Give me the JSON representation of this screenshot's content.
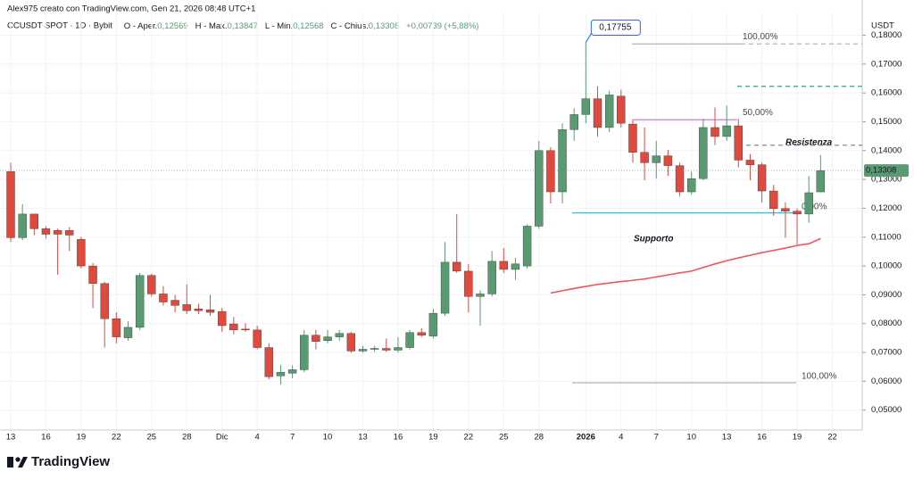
{
  "header": {
    "author_line": "Alex975 creato con TradingView.com, Gen 21, 2026 08:48 UTC+1",
    "symbol": "CCUSDT SPOT · 1D · Bybit",
    "items": [
      {
        "key": "O - Aper.",
        "value": "0,12569"
      },
      {
        "key": "H - Max.",
        "value": "0,13847"
      },
      {
        "key": "L - Min.",
        "value": "0,12568"
      },
      {
        "key": "C - Chius.",
        "value": "0,13308"
      }
    ],
    "change": "+0,00739 (+5,88%)"
  },
  "logo": "TradingView",
  "chart_data": {
    "type": "candlestick",
    "currency": "USDT",
    "up_color": "#5a9a72",
    "down_color": "#e0493e",
    "categories": [
      "13",
      null,
      null,
      "16",
      null,
      null,
      "19",
      null,
      null,
      "22",
      null,
      null,
      "25",
      null,
      null,
      "28",
      null,
      null,
      "Dic",
      null,
      null,
      "4",
      null,
      null,
      "7",
      null,
      null,
      "10",
      null,
      null,
      "13",
      null,
      null,
      "16",
      null,
      null,
      "19",
      null,
      null,
      "22",
      null,
      null,
      "25",
      null,
      null,
      "28",
      null,
      null,
      null,
      "2026",
      null,
      null,
      "4",
      null,
      null,
      "7",
      null,
      null,
      "10",
      null,
      null,
      "13",
      null,
      null,
      "16",
      null,
      null,
      "19",
      null,
      null,
      "22"
    ],
    "open": [
      0.1327,
      0.1098,
      0.118,
      0.1129,
      0.1123,
      0.1123,
      0.1092,
      0.1,
      0.0939,
      0.0817,
      0.0751,
      0.0787,
      0.0967,
      0.0903,
      0.0881,
      0.0866,
      0.0851,
      0.0848,
      0.0842,
      0.0799,
      0.0781,
      0.0778,
      0.0717,
      0.0619,
      0.0628,
      0.064,
      0.076,
      0.0741,
      0.0754,
      0.0766,
      0.0705,
      0.0711,
      0.0714,
      0.0708,
      0.0717,
      0.0769,
      0.0757,
      0.0836,
      0.1013,
      0.0982,
      0.0894,
      0.0903,
      0.1016,
      0.0988,
      0.1,
      0.1138,
      0.14,
      0.1257,
      0.1473,
      0.1525,
      0.158,
      0.148,
      0.1589,
      0.1492,
      0.1394,
      0.1358,
      0.1382,
      0.1348,
      0.1257,
      0.1303,
      0.148,
      0.1449,
      0.1486,
      0.1367,
      0.1351,
      0.126,
      0.1199,
      0.119,
      0.118,
      0.12569,
      null
    ],
    "high": [
      0.1358,
      0.1214,
      0.118,
      0.1138,
      0.1129,
      0.1135,
      0.1101,
      0.101,
      0.0946,
      0.0839,
      0.0808,
      0.0976,
      0.0973,
      0.093,
      0.09,
      0.0936,
      0.0869,
      0.09,
      0.0854,
      0.0823,
      0.0802,
      0.0793,
      0.0732,
      0.0656,
      0.0656,
      0.0778,
      0.0778,
      0.0778,
      0.0778,
      0.0772,
      0.0723,
      0.0723,
      0.0748,
      0.0754,
      0.0778,
      0.0784,
      0.0851,
      0.1083,
      0.118,
      0.1007,
      0.0915,
      0.1052,
      0.1062,
      0.1028,
      0.1144,
      0.1434,
      0.1412,
      0.1495,
      0.1547,
      0.17755,
      0.1623,
      0.1608,
      0.1611,
      0.1504,
      0.148,
      0.1434,
      0.1403,
      0.1358,
      0.1327,
      0.151,
      0.155,
      0.1556,
      0.151,
      0.1388,
      0.1358,
      0.1281,
      0.122,
      0.1199,
      0.1312,
      0.13847,
      null
    ],
    "low": [
      0.1083,
      0.1089,
      0.1107,
      0.1095,
      0.097,
      0.1052,
      0.0991,
      0.0854,
      0.0717,
      0.0732,
      0.0741,
      0.0778,
      0.0894,
      0.0863,
      0.0839,
      0.0833,
      0.0833,
      0.0827,
      0.0772,
      0.0763,
      0.0772,
      0.0711,
      0.0607,
      0.0589,
      0.061,
      0.0631,
      0.0711,
      0.0732,
      0.0741,
      0.0699,
      0.0699,
      0.0702,
      0.0702,
      0.0699,
      0.0711,
      0.0754,
      0.0748,
      0.0827,
      0.0976,
      0.0839,
      0.0793,
      0.0894,
      0.0976,
      0.0952,
      0.0991,
      0.1129,
      0.1217,
      0.1217,
      0.1434,
      0.1495,
      0.1449,
      0.1464,
      0.148,
      0.1358,
      0.1297,
      0.1303,
      0.1312,
      0.1242,
      0.1248,
      0.1297,
      0.1419,
      0.1434,
      0.1342,
      0.1297,
      0.122,
      0.1174,
      0.1098,
      0.1074,
      0.115,
      0.12568,
      null
    ],
    "close": [
      0.1098,
      0.118,
      0.1129,
      0.111,
      0.111,
      0.1107,
      0.1,
      0.0939,
      0.0817,
      0.0754,
      0.0787,
      0.0967,
      0.0903,
      0.0875,
      0.0863,
      0.0845,
      0.0845,
      0.0839,
      0.0793,
      0.0778,
      0.0778,
      0.0717,
      0.0616,
      0.0631,
      0.064,
      0.076,
      0.0738,
      0.0754,
      0.0766,
      0.0705,
      0.0711,
      0.0714,
      0.0708,
      0.0717,
      0.0769,
      0.076,
      0.0836,
      0.1013,
      0.0982,
      0.0894,
      0.0903,
      0.1016,
      0.0988,
      0.1007,
      0.1138,
      0.14,
      0.1257,
      0.1473,
      0.1525,
      0.158,
      0.148,
      0.1593,
      0.1495,
      0.1394,
      0.1358,
      0.1382,
      0.1348,
      0.1257,
      0.1303,
      0.148,
      0.1449,
      0.1486,
      0.1367,
      0.1351,
      0.126,
      0.1199,
      0.119,
      0.118,
      0.1254,
      0.13308,
      null
    ],
    "ma": {
      "color": "#f2545b",
      "values": [
        null,
        null,
        null,
        null,
        null,
        null,
        null,
        null,
        null,
        null,
        null,
        null,
        null,
        null,
        null,
        null,
        null,
        null,
        null,
        null,
        null,
        null,
        null,
        null,
        null,
        null,
        null,
        null,
        null,
        null,
        null,
        null,
        null,
        null,
        null,
        null,
        null,
        null,
        null,
        null,
        null,
        null,
        null,
        null,
        null,
        null,
        0.0906,
        0.0914,
        0.0922,
        0.0929,
        0.0936,
        0.0941,
        0.0946,
        0.095,
        0.0955,
        0.0962,
        0.0969,
        0.0976,
        0.0982,
        0.0995,
        0.1007,
        0.1018,
        0.1028,
        0.1037,
        0.1046,
        0.1054,
        0.1062,
        0.1071,
        0.1077,
        0.1095,
        null
      ]
    },
    "ylim": [
      0.0465,
      0.1814
    ],
    "yticks": [
      {
        "value": 0.18,
        "label": "0,18000"
      },
      {
        "value": 0.17,
        "label": "0,17000"
      },
      {
        "value": 0.16,
        "label": "0,16000"
      },
      {
        "value": 0.15,
        "label": "0,15000"
      },
      {
        "value": 0.14,
        "label": "0,14000"
      },
      {
        "value": 0.13,
        "label": "0,13000"
      },
      {
        "value": 0.12,
        "label": "0,12000"
      },
      {
        "value": 0.11,
        "label": "0,11000"
      },
      {
        "value": 0.1,
        "label": "0,10000"
      },
      {
        "value": 0.09,
        "label": "0,09000"
      },
      {
        "value": 0.08,
        "label": "0,08000"
      },
      {
        "value": 0.07,
        "label": "0,07000"
      },
      {
        "value": 0.06,
        "label": "0,06000"
      },
      {
        "value": 0.05,
        "label": "0,05000"
      }
    ],
    "grid": true,
    "callout": {
      "value": 0.17755,
      "label": "0,17755",
      "color": "#2962ff"
    },
    "last_price": {
      "value": 0.13308,
      "label": "0,13308"
    },
    "levels": [
      {
        "label": "100,00%",
        "value": 0.177,
        "color": "#b2b5be"
      },
      {
        "value": 0.1623,
        "color": "#26a69a"
      },
      {
        "label": "50,00%",
        "value": 0.1507,
        "color": "#c77dd3"
      },
      {
        "value": 0.1419,
        "color": "#9e8fa6"
      },
      {
        "label": "0,00%",
        "value": 0.1184,
        "color": "#26c6da"
      },
      {
        "label": "100,00%",
        "value": 0.0595,
        "color": "#b2b5be"
      }
    ],
    "annotations": [
      {
        "text": "Resistenza",
        "color": "#c25dc9"
      },
      {
        "text": "Supporto",
        "color": "#22b8d0"
      }
    ]
  }
}
